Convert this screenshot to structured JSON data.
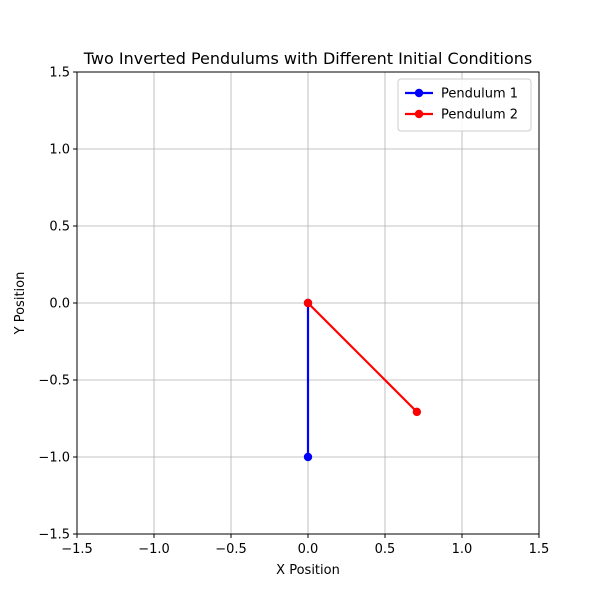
{
  "chart_data": {
    "type": "line",
    "title": "Two Inverted Pendulums with Different Initial Conditions",
    "xlabel": "X Position",
    "ylabel": "Y Position",
    "xlim": [
      -1.5,
      1.5
    ],
    "ylim": [
      -1.5,
      1.5
    ],
    "xticks": [
      -1.5,
      -1.0,
      -0.5,
      0.0,
      0.5,
      1.0,
      1.5
    ],
    "yticks": [
      -1.5,
      -1.0,
      -0.5,
      0.0,
      0.5,
      1.0,
      1.5
    ],
    "xtick_labels": [
      "−1.5",
      "−1.0",
      "−0.5",
      "0.0",
      "0.5",
      "1.0",
      "1.5"
    ],
    "ytick_labels": [
      "−1.5",
      "−1.0",
      "−0.5",
      "0.0",
      "0.5",
      "1.0",
      "1.5"
    ],
    "grid": true,
    "legend_position": "top-right",
    "series": [
      {
        "name": "Pendulum 1",
        "color": "#0000ff",
        "x": [
          0.0,
          0.0
        ],
        "y": [
          0.0,
          -1.0
        ]
      },
      {
        "name": "Pendulum 2",
        "color": "#ff0000",
        "x": [
          0.0,
          0.707
        ],
        "y": [
          0.0,
          -0.707
        ]
      }
    ]
  }
}
